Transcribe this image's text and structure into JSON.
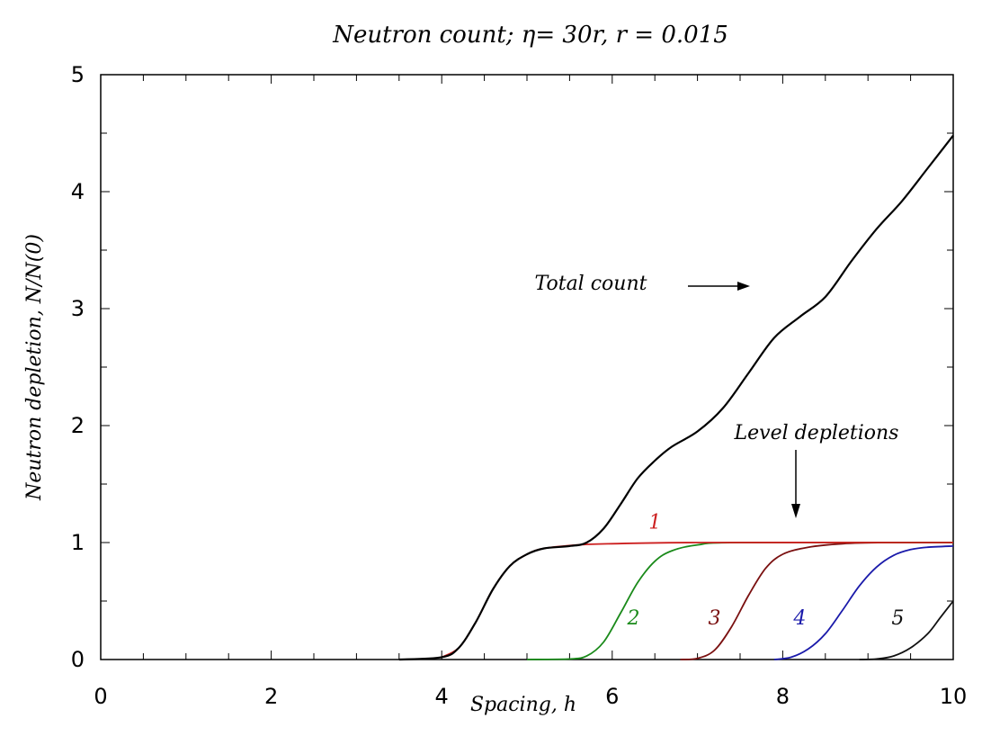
{
  "chart_data": {
    "type": "line",
    "title": "Neutron count;  η= 30r, r = 0.015",
    "xlabel": "Spacing, h",
    "ylabel": "Neutron depletion, N/N(0)",
    "xlim": [
      0,
      10
    ],
    "ylim": [
      0,
      5
    ],
    "x_ticks": [
      "0",
      "2",
      "4",
      "6",
      "8",
      "10"
    ],
    "y_ticks": [
      "0",
      "1",
      "2",
      "3",
      "4",
      "5"
    ],
    "grid": false,
    "series": [
      {
        "name": "Total count",
        "color": "#000000",
        "points": [
          [
            3.5,
            0.0
          ],
          [
            4.0,
            0.02
          ],
          [
            4.2,
            0.1
          ],
          [
            4.4,
            0.32
          ],
          [
            4.6,
            0.6
          ],
          [
            4.8,
            0.8
          ],
          [
            5.0,
            0.9
          ],
          [
            5.2,
            0.95
          ],
          [
            5.5,
            0.97
          ],
          [
            5.7,
            1.0
          ],
          [
            5.9,
            1.12
          ],
          [
            6.1,
            1.33
          ],
          [
            6.3,
            1.55
          ],
          [
            6.5,
            1.7
          ],
          [
            6.7,
            1.82
          ],
          [
            7.0,
            1.95
          ],
          [
            7.3,
            2.15
          ],
          [
            7.6,
            2.45
          ],
          [
            7.9,
            2.75
          ],
          [
            8.2,
            2.93
          ],
          [
            8.5,
            3.1
          ],
          [
            8.8,
            3.4
          ],
          [
            9.1,
            3.68
          ],
          [
            9.4,
            3.92
          ],
          [
            9.7,
            4.2
          ],
          [
            10.0,
            4.48
          ]
        ]
      },
      {
        "name": "1",
        "color": "#cc1f1f",
        "points": [
          [
            4.0,
            0.02
          ],
          [
            4.2,
            0.1
          ],
          [
            4.4,
            0.32
          ],
          [
            4.6,
            0.6
          ],
          [
            4.8,
            0.8
          ],
          [
            5.0,
            0.9
          ],
          [
            5.2,
            0.95
          ],
          [
            5.6,
            0.98
          ],
          [
            6.0,
            0.99
          ],
          [
            7.0,
            1.0
          ],
          [
            10.0,
            1.0
          ]
        ]
      },
      {
        "name": "2",
        "color": "#1a8a1a",
        "points": [
          [
            5.0,
            0.0
          ],
          [
            5.5,
            0.005
          ],
          [
            5.7,
            0.03
          ],
          [
            5.9,
            0.15
          ],
          [
            6.1,
            0.4
          ],
          [
            6.3,
            0.66
          ],
          [
            6.5,
            0.84
          ],
          [
            6.7,
            0.93
          ],
          [
            7.0,
            0.98
          ],
          [
            7.5,
            1.0
          ],
          [
            10.0,
            1.0
          ]
        ]
      },
      {
        "name": "3",
        "color": "#7a1010",
        "points": [
          [
            6.8,
            0.0
          ],
          [
            7.0,
            0.01
          ],
          [
            7.2,
            0.08
          ],
          [
            7.4,
            0.28
          ],
          [
            7.6,
            0.55
          ],
          [
            7.8,
            0.78
          ],
          [
            8.0,
            0.9
          ],
          [
            8.3,
            0.96
          ],
          [
            8.7,
            0.99
          ],
          [
            9.2,
            1.0
          ],
          [
            10.0,
            1.0
          ]
        ]
      },
      {
        "name": "4",
        "color": "#1a1aaa",
        "points": [
          [
            7.9,
            0.0
          ],
          [
            8.1,
            0.02
          ],
          [
            8.3,
            0.09
          ],
          [
            8.5,
            0.22
          ],
          [
            8.7,
            0.42
          ],
          [
            8.9,
            0.63
          ],
          [
            9.1,
            0.79
          ],
          [
            9.3,
            0.89
          ],
          [
            9.5,
            0.94
          ],
          [
            9.7,
            0.96
          ],
          [
            10.0,
            0.97
          ]
        ]
      },
      {
        "name": "5",
        "color": "#111111",
        "points": [
          [
            8.9,
            0.0
          ],
          [
            9.1,
            0.005
          ],
          [
            9.3,
            0.03
          ],
          [
            9.5,
            0.1
          ],
          [
            9.7,
            0.22
          ],
          [
            9.85,
            0.36
          ],
          [
            10.0,
            0.5
          ]
        ]
      }
    ],
    "annotations": [
      {
        "text": "Total count",
        "x": 6.2,
        "y": 3.2
      },
      {
        "text": "Level depletions",
        "x": 8.9,
        "y": 1.92
      }
    ]
  }
}
